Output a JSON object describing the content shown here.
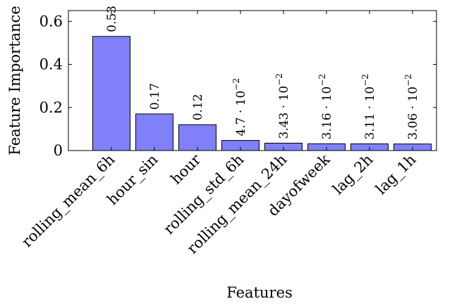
{
  "chart_data": {
    "type": "bar",
    "title": "",
    "xlabel": "Features",
    "ylabel": "Feature Importance",
    "ylim": [
      0,
      0.65
    ],
    "yticks": [
      0,
      0.2,
      0.4,
      0.6
    ],
    "ytick_labels": [
      "0",
      "0.2",
      "0.4",
      "0.6"
    ],
    "bar_color": "#8080f8",
    "categories": [
      "rolling_mean_6h",
      "hour_sin",
      "hour",
      "rolling_std_6h",
      "rolling_mean_24h",
      "dayofweek",
      "lag_2h",
      "lag_1h"
    ],
    "values": [
      0.53,
      0.17,
      0.12,
      0.047,
      0.0343,
      0.0316,
      0.0311,
      0.0306
    ],
    "labels": [
      {
        "mantissa": "0.53",
        "exp": ""
      },
      {
        "mantissa": "0.17",
        "exp": ""
      },
      {
        "mantissa": "0.12",
        "exp": ""
      },
      {
        "mantissa": "4.7 · 10",
        "exp": "−2"
      },
      {
        "mantissa": "3.43 · 10",
        "exp": "−2"
      },
      {
        "mantissa": "3.16 · 10",
        "exp": "−2"
      },
      {
        "mantissa": "3.11 · 10",
        "exp": "−2"
      },
      {
        "mantissa": "3.06 · 10",
        "exp": "−2"
      }
    ]
  }
}
